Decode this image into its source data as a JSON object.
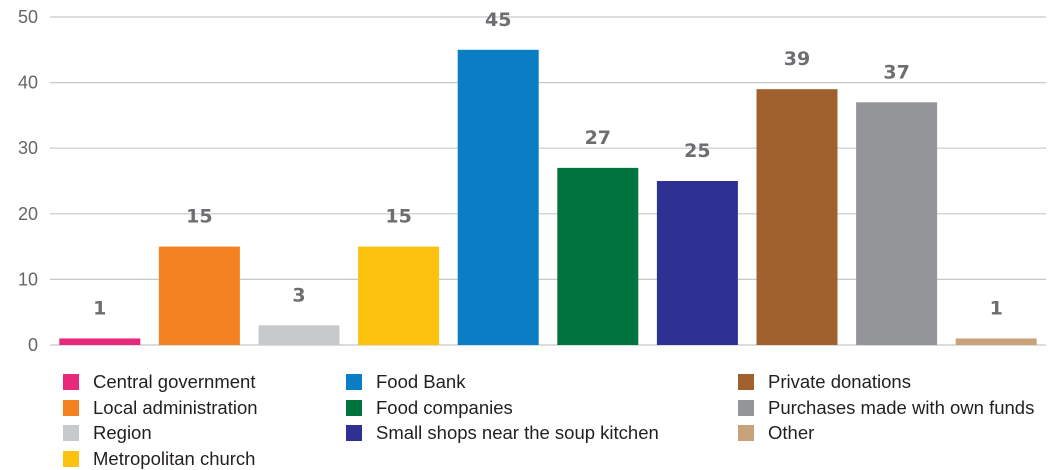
{
  "chart_data": {
    "type": "bar",
    "categories": [
      "Central government",
      "Local administration",
      "Region",
      "Metropolitan church",
      "Food Bank",
      "Food companies",
      "Small shops near the soup kitchen",
      "Private donations",
      "Purchases made with own funds",
      "Other"
    ],
    "values": [
      1,
      15,
      3,
      15,
      45,
      27,
      25,
      39,
      37,
      1
    ],
    "colors": [
      "#e8287a",
      "#f58220",
      "#c8c9cb",
      "#fdc210",
      "#0b7dc4",
      "#007440",
      "#2e3192",
      "#a0612f",
      "#939598",
      "#c8a27a"
    ],
    "ylim": [
      0,
      50
    ],
    "yticks": [
      0,
      10,
      20,
      30,
      40,
      50
    ],
    "grid": true,
    "legend_position": "bottom",
    "data_labels": true
  }
}
